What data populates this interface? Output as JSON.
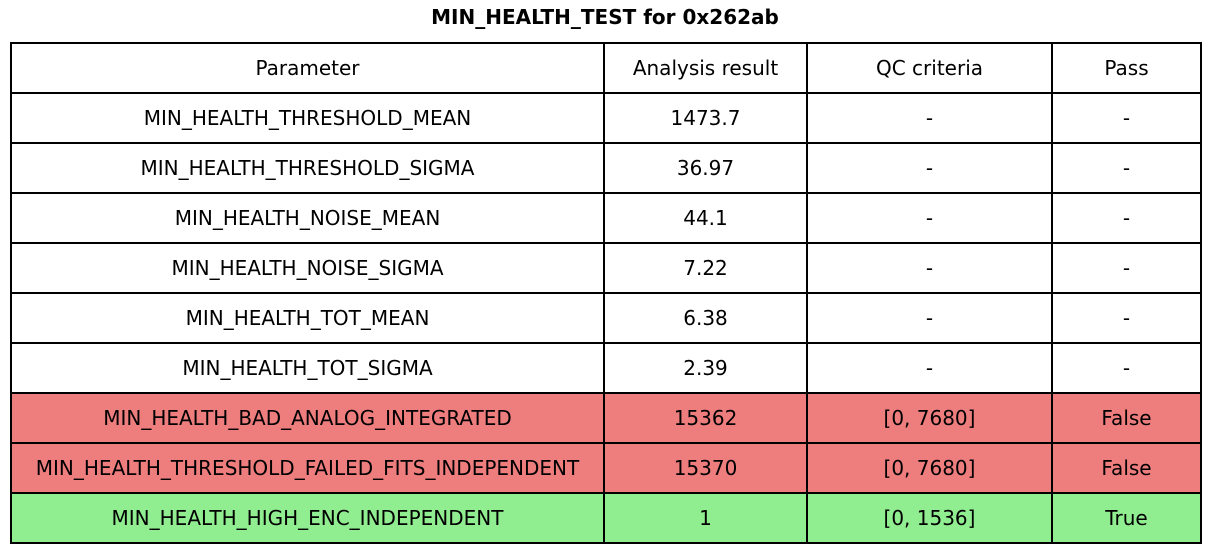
{
  "colors": {
    "fail_row": "#ee7d7d",
    "pass_row": "#90ee90",
    "border": "#000000",
    "background": "#ffffff",
    "text": "#000000"
  },
  "chart_data": {
    "type": "table",
    "title": "MIN_HEALTH_TEST for 0x262ab",
    "columns": [
      "Parameter",
      "Analysis result",
      "QC criteria",
      "Pass"
    ],
    "rows": [
      {
        "parameter": "MIN_HEALTH_THRESHOLD_MEAN",
        "analysis_result": "1473.7",
        "qc_criteria": "-",
        "pass": "-",
        "status": "none"
      },
      {
        "parameter": "MIN_HEALTH_THRESHOLD_SIGMA",
        "analysis_result": "36.97",
        "qc_criteria": "-",
        "pass": "-",
        "status": "none"
      },
      {
        "parameter": "MIN_HEALTH_NOISE_MEAN",
        "analysis_result": "44.1",
        "qc_criteria": "-",
        "pass": "-",
        "status": "none"
      },
      {
        "parameter": "MIN_HEALTH_NOISE_SIGMA",
        "analysis_result": "7.22",
        "qc_criteria": "-",
        "pass": "-",
        "status": "none"
      },
      {
        "parameter": "MIN_HEALTH_TOT_MEAN",
        "analysis_result": "6.38",
        "qc_criteria": "-",
        "pass": "-",
        "status": "none"
      },
      {
        "parameter": "MIN_HEALTH_TOT_SIGMA",
        "analysis_result": "2.39",
        "qc_criteria": "-",
        "pass": "-",
        "status": "none"
      },
      {
        "parameter": "MIN_HEALTH_BAD_ANALOG_INTEGRATED",
        "analysis_result": "15362",
        "qc_criteria": "[0, 7680]",
        "pass": "False",
        "status": "fail"
      },
      {
        "parameter": "MIN_HEALTH_THRESHOLD_FAILED_FITS_INDEPENDENT",
        "analysis_result": "15370",
        "qc_criteria": "[0, 7680]",
        "pass": "False",
        "status": "fail"
      },
      {
        "parameter": "MIN_HEALTH_HIGH_ENC_INDEPENDENT",
        "analysis_result": "1",
        "qc_criteria": "[0, 1536]",
        "pass": "True",
        "status": "pass"
      }
    ],
    "layout": {
      "header_row": true,
      "grid": "all-cells",
      "highlight_legend": "red = QC fail, green = QC pass"
    }
  }
}
